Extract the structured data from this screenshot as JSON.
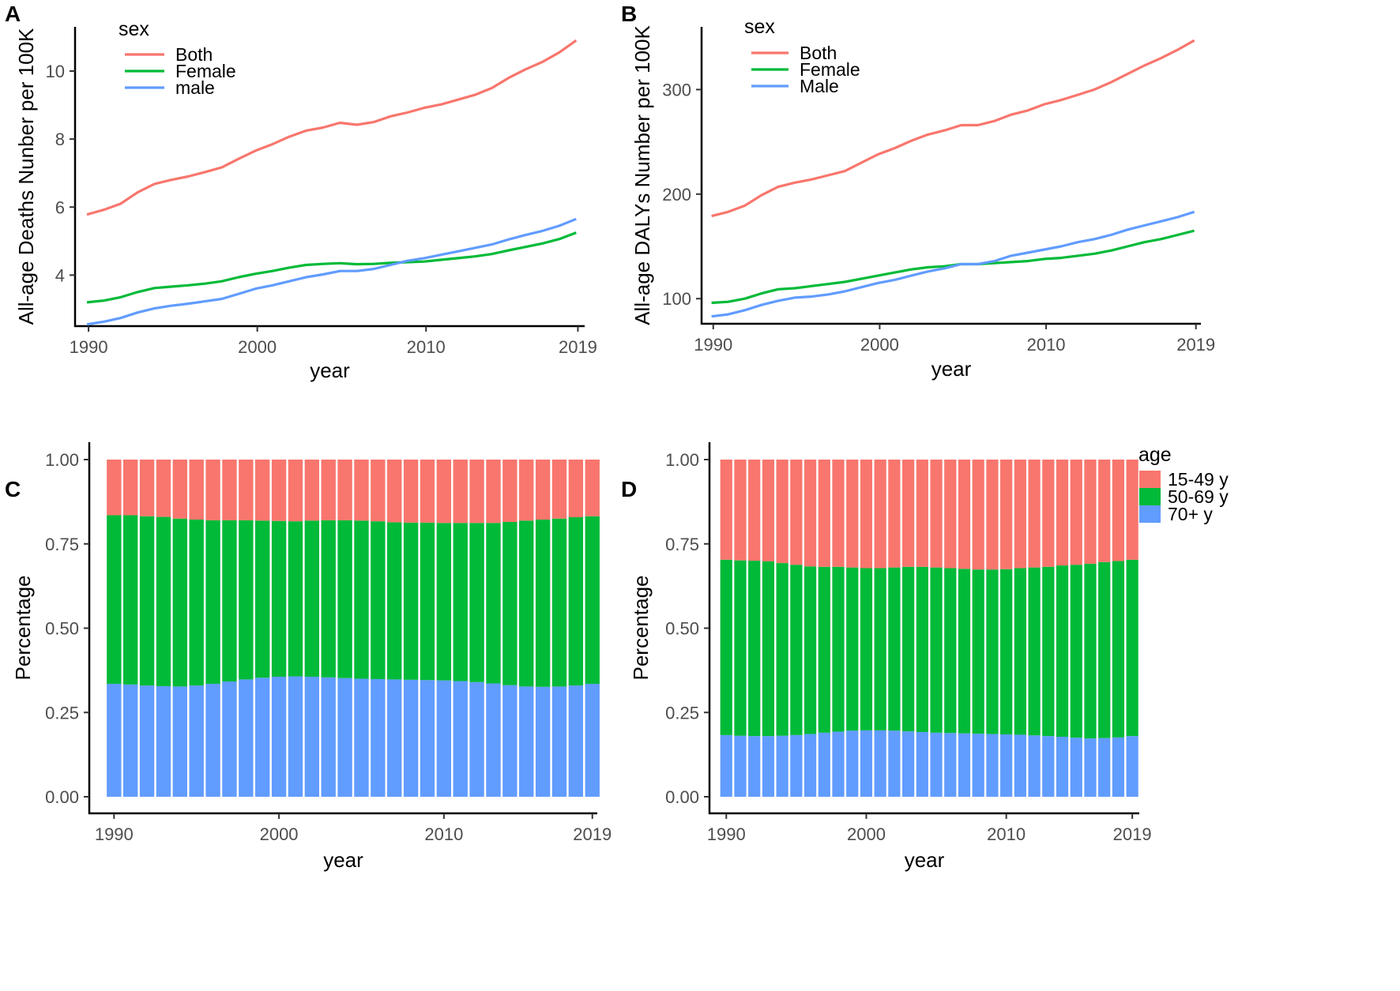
{
  "panels": {
    "A": "A",
    "B": "B",
    "C": "C",
    "D": "D"
  },
  "colors": {
    "both": "#F8766D",
    "female": "#00BA38",
    "male": "#619CFF"
  },
  "chart_data": [
    {
      "id": "A",
      "type": "line",
      "xlabel": "year",
      "ylabel": "All-age Deaths Nunber per 100K",
      "xlim": [
        1990,
        2019
      ],
      "ylim": [
        2.5,
        11.3
      ],
      "xticks": [
        1990,
        2000,
        2010,
        2019
      ],
      "yticks": [
        4,
        6,
        8,
        10
      ],
      "legend": {
        "title": "sex",
        "position": "top-left"
      },
      "x": [
        1990,
        1991,
        1992,
        1993,
        1994,
        1995,
        1996,
        1997,
        1998,
        1999,
        2000,
        2001,
        2002,
        2003,
        2004,
        2005,
        2006,
        2007,
        2008,
        2009,
        2010,
        2011,
        2012,
        2013,
        2014,
        2015,
        2016,
        2017,
        2018,
        2019
      ],
      "series": [
        {
          "name": "Both",
          "key": "both",
          "values": [
            5.78,
            5.92,
            6.1,
            6.43,
            6.68,
            6.8,
            6.9,
            7.03,
            7.17,
            7.42,
            7.66,
            7.85,
            8.07,
            8.25,
            8.34,
            8.48,
            8.42,
            8.5,
            8.67,
            8.78,
            8.92,
            9.02,
            9.16,
            9.3,
            9.5,
            9.8,
            10.05,
            10.27,
            10.55,
            10.9
          ]
        },
        {
          "name": "Female",
          "key": "female",
          "values": [
            3.2,
            3.25,
            3.35,
            3.5,
            3.62,
            3.66,
            3.7,
            3.75,
            3.82,
            3.94,
            4.04,
            4.12,
            4.22,
            4.3,
            4.33,
            4.35,
            4.32,
            4.33,
            4.36,
            4.38,
            4.4,
            4.45,
            4.5,
            4.55,
            4.62,
            4.73,
            4.83,
            4.93,
            5.06,
            5.25
          ]
        },
        {
          "name": "male",
          "key": "male",
          "values": [
            2.55,
            2.63,
            2.74,
            2.9,
            3.02,
            3.1,
            3.16,
            3.23,
            3.3,
            3.45,
            3.6,
            3.7,
            3.82,
            3.94,
            4.02,
            4.12,
            4.12,
            4.18,
            4.3,
            4.42,
            4.5,
            4.6,
            4.7,
            4.8,
            4.9,
            5.05,
            5.18,
            5.3,
            5.45,
            5.65
          ]
        }
      ]
    },
    {
      "id": "B",
      "type": "line",
      "xlabel": "year",
      "ylabel": "All-age DALYs Number per 100K",
      "xlim": [
        1990,
        2019
      ],
      "ylim": [
        76,
        360
      ],
      "xticks": [
        1990,
        2000,
        2010,
        2019
      ],
      "yticks": [
        100,
        200,
        300
      ],
      "legend": {
        "title": "sex",
        "position": "top-left"
      },
      "x": [
        1990,
        1991,
        1992,
        1993,
        1994,
        1995,
        1996,
        1997,
        1998,
        1999,
        2000,
        2001,
        2002,
        2003,
        2004,
        2005,
        2006,
        2007,
        2008,
        2009,
        2010,
        2011,
        2012,
        2013,
        2014,
        2015,
        2016,
        2017,
        2018,
        2019
      ],
      "series": [
        {
          "name": "Both",
          "key": "both",
          "values": [
            179,
            183,
            189,
            199,
            207,
            211,
            214,
            218,
            222,
            230,
            238,
            244,
            251,
            257,
            261,
            266,
            266,
            270,
            276,
            280,
            286,
            290,
            295,
            300,
            307,
            315,
            323,
            330,
            338,
            347
          ]
        },
        {
          "name": "Female",
          "key": "female",
          "values": [
            96,
            97,
            100,
            105,
            109,
            110,
            112,
            114,
            116,
            119,
            122,
            125,
            128,
            130,
            131,
            133,
            133,
            134,
            135,
            136,
            138,
            139,
            141,
            143,
            146,
            150,
            154,
            157,
            161,
            165
          ]
        },
        {
          "name": "Male",
          "key": "male",
          "values": [
            83,
            85,
            89,
            94,
            98,
            101,
            102,
            104,
            107,
            111,
            115,
            118,
            122,
            126,
            129,
            133,
            133,
            136,
            141,
            144,
            147,
            150,
            154,
            157,
            161,
            166,
            170,
            174,
            178,
            183
          ]
        }
      ]
    },
    {
      "id": "C",
      "type": "bar",
      "stacked": true,
      "xlabel": "year",
      "ylabel": "Percentage",
      "xlim": [
        1990,
        2019
      ],
      "ylim": [
        0,
        1
      ],
      "xticks": [
        1990,
        2000,
        2010,
        2019
      ],
      "yticks": [
        0.0,
        0.25,
        0.5,
        0.75,
        1.0
      ],
      "ytick_labels": [
        "0.00",
        "0.25",
        "0.50",
        "0.75",
        "1.00"
      ],
      "categories": [
        1990,
        1991,
        1992,
        1993,
        1994,
        1995,
        1996,
        1997,
        1998,
        1999,
        2000,
        2001,
        2002,
        2003,
        2004,
        2005,
        2006,
        2007,
        2008,
        2009,
        2010,
        2011,
        2012,
        2013,
        2014,
        2015,
        2016,
        2017,
        2018,
        2019
      ],
      "series": [
        {
          "name": "70+ y",
          "key": "male",
          "values": [
            0.335,
            0.333,
            0.33,
            0.328,
            0.327,
            0.33,
            0.335,
            0.342,
            0.348,
            0.353,
            0.356,
            0.357,
            0.356,
            0.354,
            0.352,
            0.35,
            0.349,
            0.348,
            0.347,
            0.346,
            0.345,
            0.343,
            0.34,
            0.336,
            0.331,
            0.327,
            0.326,
            0.327,
            0.33,
            0.335
          ]
        },
        {
          "name": "50-69 y",
          "key": "female",
          "values": [
            0.5,
            0.502,
            0.502,
            0.502,
            0.498,
            0.492,
            0.485,
            0.478,
            0.472,
            0.466,
            0.462,
            0.46,
            0.463,
            0.466,
            0.468,
            0.469,
            0.468,
            0.466,
            0.466,
            0.467,
            0.467,
            0.469,
            0.472,
            0.476,
            0.484,
            0.492,
            0.496,
            0.498,
            0.499,
            0.497
          ]
        },
        {
          "name": "15-49 y",
          "key": "both",
          "values": [
            0.165,
            0.165,
            0.168,
            0.17,
            0.175,
            0.178,
            0.18,
            0.18,
            0.18,
            0.181,
            0.182,
            0.183,
            0.181,
            0.18,
            0.18,
            0.181,
            0.183,
            0.186,
            0.187,
            0.187,
            0.188,
            0.188,
            0.188,
            0.188,
            0.185,
            0.181,
            0.178,
            0.175,
            0.171,
            0.168
          ]
        }
      ]
    },
    {
      "id": "D",
      "type": "bar",
      "stacked": true,
      "xlabel": "year",
      "ylabel": "Percentage",
      "xlim": [
        1990,
        2019
      ],
      "ylim": [
        0,
        1
      ],
      "xticks": [
        1990,
        2000,
        2010,
        2019
      ],
      "yticks": [
        0.0,
        0.25,
        0.5,
        0.75,
        1.0
      ],
      "ytick_labels": [
        "0.00",
        "0.25",
        "0.50",
        "0.75",
        "1.00"
      ],
      "legend": {
        "title": "age",
        "position": "right",
        "entries": [
          {
            "name": "15-49 y",
            "key": "both"
          },
          {
            "name": "50-69 y",
            "key": "female"
          },
          {
            "name": "70+ y",
            "key": "male"
          }
        ]
      },
      "categories": [
        1990,
        1991,
        1992,
        1993,
        1994,
        1995,
        1996,
        1997,
        1998,
        1999,
        2000,
        2001,
        2002,
        2003,
        2004,
        2005,
        2006,
        2007,
        2008,
        2009,
        2010,
        2011,
        2012,
        2013,
        2014,
        2015,
        2016,
        2017,
        2018,
        2019
      ],
      "series": [
        {
          "name": "70+ y",
          "key": "male",
          "values": [
            0.183,
            0.181,
            0.18,
            0.18,
            0.181,
            0.183,
            0.186,
            0.19,
            0.193,
            0.196,
            0.197,
            0.197,
            0.196,
            0.194,
            0.192,
            0.19,
            0.189,
            0.188,
            0.187,
            0.186,
            0.185,
            0.184,
            0.182,
            0.18,
            0.178,
            0.175,
            0.173,
            0.174,
            0.176,
            0.18
          ]
        },
        {
          "name": "50-69 y",
          "key": "female",
          "values": [
            0.52,
            0.52,
            0.52,
            0.518,
            0.512,
            0.505,
            0.497,
            0.492,
            0.489,
            0.484,
            0.481,
            0.481,
            0.484,
            0.488,
            0.49,
            0.49,
            0.489,
            0.488,
            0.487,
            0.488,
            0.49,
            0.494,
            0.498,
            0.502,
            0.508,
            0.513,
            0.518,
            0.522,
            0.523,
            0.523
          ]
        },
        {
          "name": "15-49 y",
          "key": "both",
          "values": [
            0.297,
            0.299,
            0.3,
            0.302,
            0.307,
            0.312,
            0.317,
            0.318,
            0.318,
            0.32,
            0.322,
            0.322,
            0.32,
            0.318,
            0.318,
            0.32,
            0.322,
            0.324,
            0.326,
            0.326,
            0.325,
            0.322,
            0.32,
            0.318,
            0.314,
            0.312,
            0.309,
            0.304,
            0.301,
            0.297
          ]
        }
      ]
    }
  ]
}
